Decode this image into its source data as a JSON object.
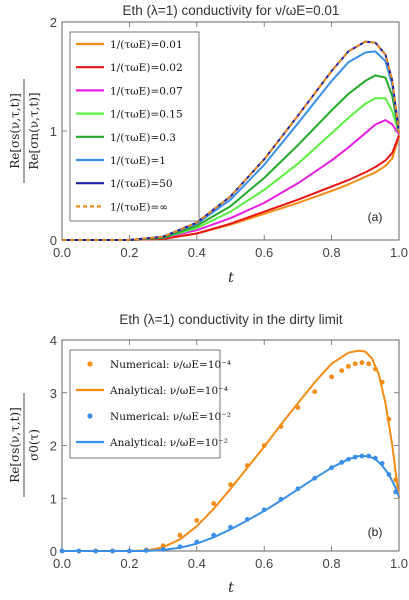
{
  "chart_data": [
    {
      "type": "line",
      "title": "Eth (λ=1) conductivity for ν/ωE=0.01",
      "xlabel": "t",
      "ylabel_num": "Re[σs(ν,τ,t)]",
      "ylabel_den": "Re[σn(ν,τ,t)]",
      "xlim": [
        0,
        1
      ],
      "ylim": [
        0,
        2
      ],
      "xticks": [
        "0.0",
        "0.2",
        "0.4",
        "0.6",
        "0.8",
        "1.0"
      ],
      "yticks": [
        "0",
        "1",
        "2"
      ],
      "panel_label": "(a)",
      "legend_position": "top-left",
      "x": [
        0,
        0.2,
        0.3,
        0.4,
        0.5,
        0.6,
        0.7,
        0.8,
        0.85,
        0.9,
        0.93,
        0.96,
        0.98,
        1.0
      ],
      "series": [
        {
          "name": "1/(τωE)=0.01",
          "color": "#f28c14",
          "style": "solid",
          "values": [
            0,
            0,
            0.01,
            0.06,
            0.14,
            0.24,
            0.34,
            0.45,
            0.51,
            0.58,
            0.62,
            0.68,
            0.75,
            0.95
          ]
        },
        {
          "name": "1/(τωE)=0.02",
          "color": "#e81414",
          "style": "solid",
          "values": [
            0,
            0,
            0.01,
            0.06,
            0.15,
            0.26,
            0.37,
            0.49,
            0.55,
            0.62,
            0.67,
            0.73,
            0.8,
            0.96
          ]
        },
        {
          "name": "1/(τωE)=0.07",
          "color": "#e61fe0",
          "style": "solid",
          "values": [
            0,
            0,
            0.02,
            0.09,
            0.2,
            0.34,
            0.52,
            0.73,
            0.85,
            0.98,
            1.06,
            1.1,
            1.06,
            0.97
          ]
        },
        {
          "name": "1/(τωE)=0.15",
          "color": "#5cf040",
          "style": "solid",
          "values": [
            0,
            0,
            0.02,
            0.11,
            0.26,
            0.46,
            0.7,
            0.98,
            1.12,
            1.25,
            1.3,
            1.3,
            1.18,
            0.98
          ]
        },
        {
          "name": "1/(τωE)=0.3",
          "color": "#23a828",
          "style": "solid",
          "values": [
            0,
            0,
            0.02,
            0.13,
            0.31,
            0.57,
            0.87,
            1.19,
            1.34,
            1.46,
            1.51,
            1.49,
            1.32,
            0.98
          ]
        },
        {
          "name": "1/(τωE)=1",
          "color": "#3a8fe8",
          "style": "solid",
          "values": [
            0,
            0,
            0.03,
            0.15,
            0.37,
            0.69,
            1.07,
            1.46,
            1.63,
            1.72,
            1.73,
            1.64,
            1.42,
            0.98
          ]
        },
        {
          "name": "1/(τωE)=50",
          "color": "#1a1fa8",
          "style": "solid",
          "values": [
            0,
            0,
            0.03,
            0.16,
            0.4,
            0.74,
            1.14,
            1.55,
            1.73,
            1.82,
            1.81,
            1.7,
            1.46,
            0.98
          ]
        },
        {
          "name": "1/(τωE)=∞",
          "color": "#f28c14",
          "style": "dashed",
          "values": [
            0,
            0,
            0.03,
            0.16,
            0.4,
            0.74,
            1.14,
            1.55,
            1.73,
            1.82,
            1.81,
            1.7,
            1.46,
            0.98
          ]
        }
      ]
    },
    {
      "type": "line",
      "title": "Eth (λ=1) conductivity in the dirty limit",
      "xlabel": "t",
      "ylabel_num": "Re[σs(ν,τ,t)]",
      "ylabel_den": "σ0(τ)",
      "xlim": [
        0,
        1
      ],
      "ylim": [
        0,
        4
      ],
      "xticks": [
        "0.0",
        "0.2",
        "0.4",
        "0.6",
        "0.8",
        "1.0"
      ],
      "yticks": [
        "0",
        "1",
        "2",
        "3",
        "4"
      ],
      "panel_label": "(b)",
      "legend_position": "top-left",
      "series": [
        {
          "name": "Numerical: ν/ωE=10⁻⁴",
          "color": "#f28c14",
          "kind": "scatter",
          "x": [
            0.0,
            0.05,
            0.1,
            0.15,
            0.2,
            0.25,
            0.3,
            0.35,
            0.4,
            0.45,
            0.5,
            0.55,
            0.6,
            0.65,
            0.7,
            0.75,
            0.8,
            0.83,
            0.85,
            0.87,
            0.89,
            0.91,
            0.93,
            0.95,
            0.97,
            0.99
          ],
          "y": [
            0,
            0,
            0,
            0,
            0,
            0.02,
            0.1,
            0.3,
            0.58,
            0.9,
            1.26,
            1.62,
            2.0,
            2.36,
            2.72,
            3.02,
            3.3,
            3.42,
            3.5,
            3.55,
            3.57,
            3.55,
            3.45,
            3.2,
            2.5,
            1.35
          ]
        },
        {
          "name": "Analytical: ν/ωE=10⁻⁴",
          "color": "#f28c14",
          "kind": "line",
          "x": [
            0,
            0.2,
            0.25,
            0.3,
            0.35,
            0.4,
            0.45,
            0.5,
            0.55,
            0.6,
            0.65,
            0.7,
            0.75,
            0.8,
            0.85,
            0.88,
            0.9,
            0.92,
            0.94,
            0.96,
            0.98,
            1.0
          ],
          "y": [
            0,
            0,
            0.01,
            0.07,
            0.22,
            0.47,
            0.8,
            1.18,
            1.58,
            1.98,
            2.4,
            2.8,
            3.2,
            3.55,
            3.76,
            3.8,
            3.78,
            3.65,
            3.35,
            2.8,
            2.0,
            1.0
          ]
        },
        {
          "name": "Numerical: ν/ωE=10⁻²",
          "color": "#3a8fe8",
          "kind": "scatter",
          "x": [
            0.0,
            0.05,
            0.1,
            0.15,
            0.2,
            0.25,
            0.3,
            0.35,
            0.4,
            0.45,
            0.5,
            0.55,
            0.6,
            0.65,
            0.7,
            0.75,
            0.8,
            0.83,
            0.85,
            0.87,
            0.89,
            0.91,
            0.93,
            0.95,
            0.97,
            0.99
          ],
          "y": [
            0,
            0,
            0,
            0,
            0,
            0.01,
            0.03,
            0.08,
            0.17,
            0.3,
            0.45,
            0.6,
            0.78,
            0.98,
            1.18,
            1.38,
            1.58,
            1.68,
            1.74,
            1.78,
            1.8,
            1.8,
            1.76,
            1.66,
            1.45,
            1.12
          ]
        },
        {
          "name": "Analytical: ν/ωE=10⁻²",
          "color": "#3a8fe8",
          "kind": "line",
          "x": [
            0,
            0.25,
            0.3,
            0.35,
            0.4,
            0.45,
            0.5,
            0.55,
            0.6,
            0.65,
            0.7,
            0.75,
            0.8,
            0.85,
            0.88,
            0.91,
            0.93,
            0.95,
            0.97,
            0.99,
            1.0
          ],
          "y": [
            0,
            0,
            0.02,
            0.06,
            0.14,
            0.26,
            0.41,
            0.58,
            0.76,
            0.96,
            1.17,
            1.38,
            1.58,
            1.74,
            1.8,
            1.8,
            1.74,
            1.62,
            1.45,
            1.2,
            1.02
          ]
        }
      ]
    }
  ]
}
